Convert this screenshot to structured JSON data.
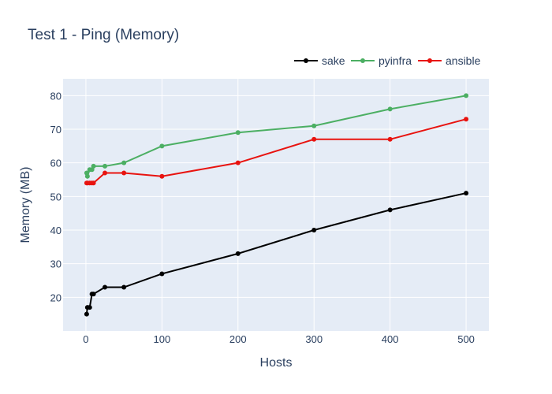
{
  "chart_data": {
    "type": "line",
    "title": "Test 1 - Ping (Memory)",
    "xlabel": "Hosts",
    "ylabel": "Memory (MB)",
    "xlim": [
      -30,
      530
    ],
    "ylim": [
      10,
      85
    ],
    "xticks": [
      0,
      100,
      200,
      300,
      400,
      500
    ],
    "yticks": [
      20,
      30,
      40,
      50,
      60,
      70,
      80
    ],
    "grid": true,
    "legend": "top-right",
    "colors": {
      "plot_bg": "#e5ecf6",
      "grid": "#ffffff",
      "text": "#2a3f5f"
    },
    "series": [
      {
        "name": "sake",
        "color": "#000000",
        "x": [
          1,
          2,
          5,
          8,
          10,
          25,
          50,
          100,
          200,
          300,
          400,
          500
        ],
        "y": [
          15,
          17,
          17,
          21,
          21,
          23,
          23,
          27,
          33,
          40,
          46,
          51
        ]
      },
      {
        "name": "pyinfra",
        "color": "#4caf63",
        "x": [
          1,
          2,
          5,
          8,
          10,
          25,
          50,
          100,
          200,
          300,
          400,
          500
        ],
        "y": [
          57,
          56,
          58,
          58,
          59,
          59,
          60,
          65,
          69,
          71,
          76,
          80
        ]
      },
      {
        "name": "ansible",
        "color": "#e8130f",
        "x": [
          1,
          2,
          5,
          8,
          10,
          25,
          50,
          100,
          200,
          300,
          400,
          500
        ],
        "y": [
          54,
          54,
          54,
          54,
          54,
          57,
          57,
          56,
          60,
          67,
          67,
          73
        ]
      }
    ]
  }
}
